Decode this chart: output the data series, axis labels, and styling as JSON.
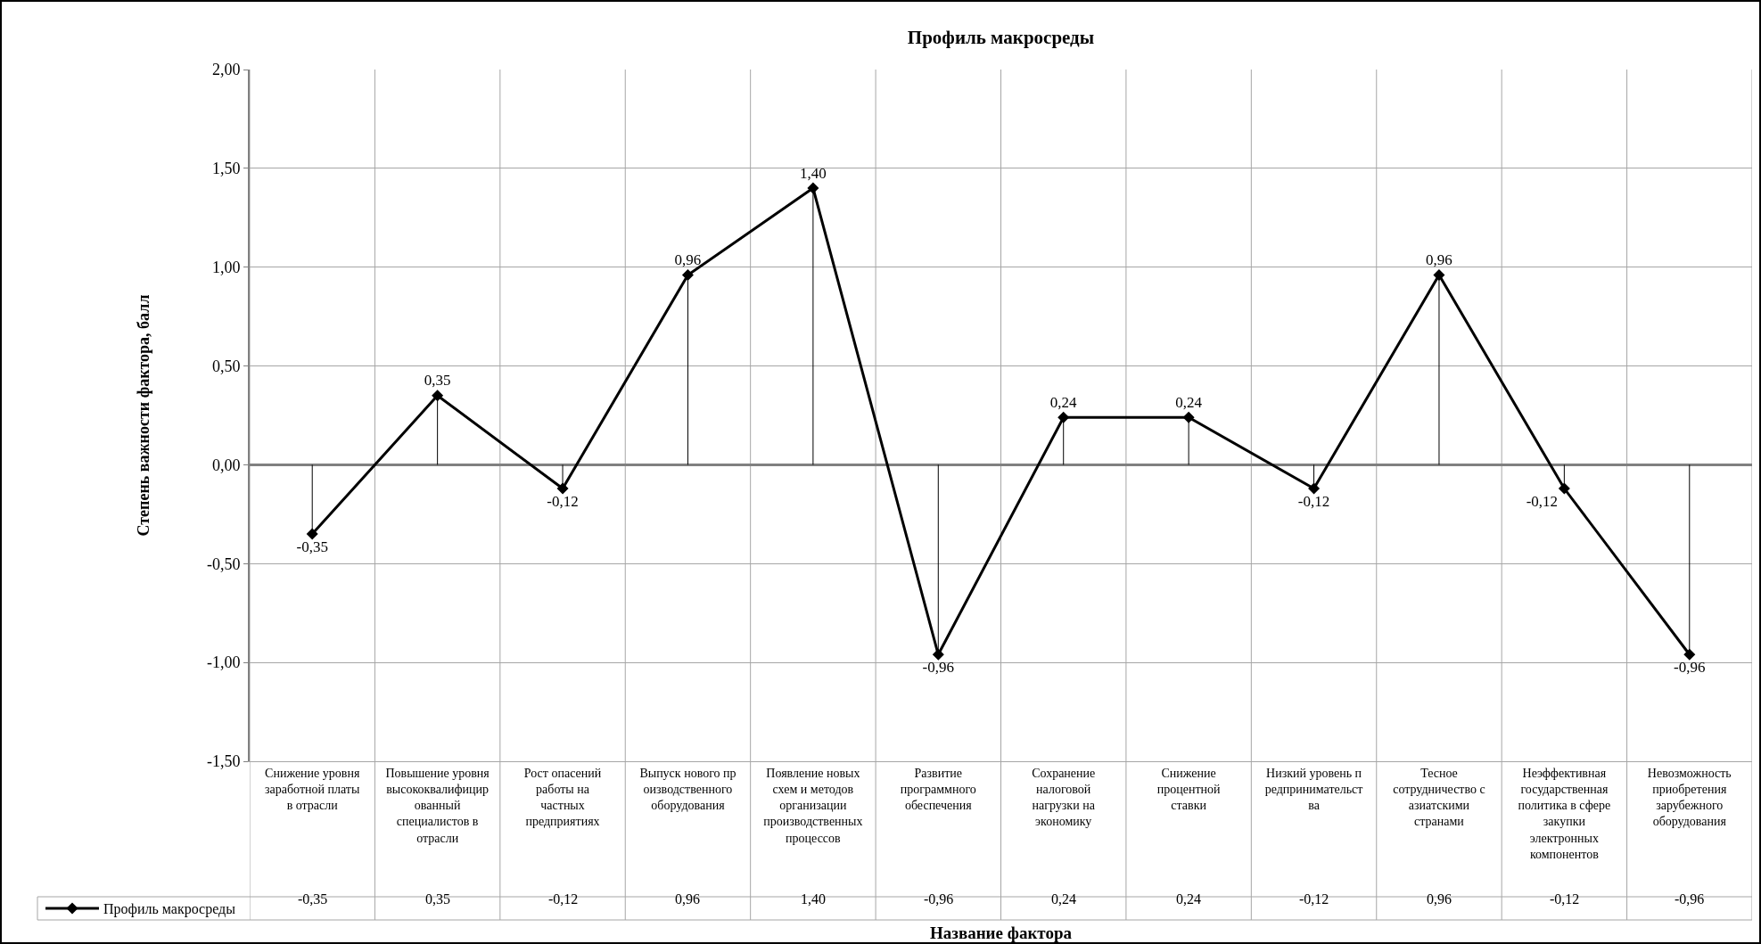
{
  "chart_data": {
    "type": "line",
    "title": "Профиль макросреды",
    "annotations": [
      "Название фактора"
    ],
    "ylabel": "Степень важности фактора, балл",
    "categories": [
      "Снижение уровня заработной платы в отрасли",
      "Повышение уровня высококвалифицированный специалистов в отрасли",
      "Рост опасений работы на частных предприятиях",
      "Выпуск нового производственного оборудования",
      "Появление новых схем и методов организации производственных процессов",
      "Развитие программного обеспечения",
      "Сохранение налоговой нагрузки на экономику",
      "Снижение процентной ставки",
      "Низкий уровень предпринимательства",
      "Тесное сотрудничество с азиатскими странами",
      "Неэффективная государственная политика в сфере закупки электронных компонентов",
      "Невозможность приобретения зарубежного оборудования"
    ],
    "series": [
      {
        "name": "Профиль макросреды",
        "color": "#000000",
        "values": [
          -0.35,
          0.35,
          -0.12,
          0.96,
          1.4,
          -0.96,
          0.24,
          0.24,
          -0.12,
          0.96,
          -0.12,
          -0.96
        ],
        "value_labels": [
          "-0,35",
          "0,35",
          "-0,12",
          "0,96",
          "1,40",
          "-0,96",
          "0,24",
          "0,24",
          "-0,12",
          "0,96",
          "-0,12",
          "-0,96"
        ]
      }
    ],
    "ylim": [
      -1.5,
      2
    ],
    "yticks": [
      {
        "value": -1.5,
        "label": "-1,50"
      },
      {
        "value": -1,
        "label": "-1,00"
      },
      {
        "value": -0.5,
        "label": "-0,50"
      },
      {
        "value": 0,
        "label": "0,00"
      },
      {
        "value": 0.5,
        "label": "0,50"
      },
      {
        "value": 1,
        "label": "1,00"
      },
      {
        "value": 1.5,
        "label": "1,50"
      },
      {
        "value": 2,
        "label": "2,00"
      }
    ],
    "grid": true,
    "legend": "bottom left",
    "marker": "diamond",
    "line_style": "solid"
  }
}
